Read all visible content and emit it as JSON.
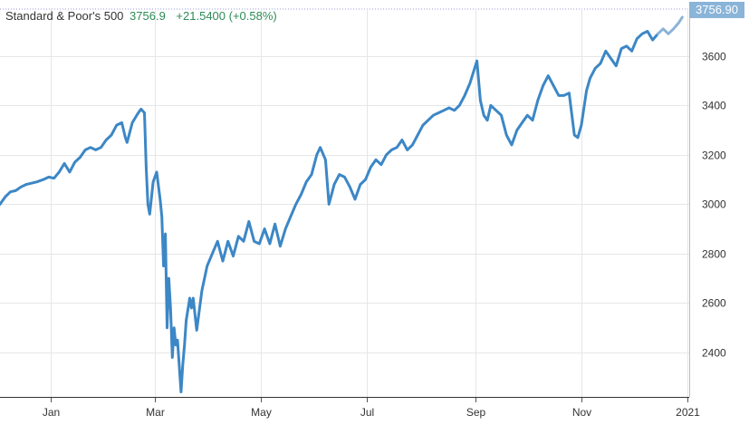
{
  "header": {
    "name": "Standard & Poor's 500",
    "value": "3756.9",
    "change": "+21.5400 (+0.58%)"
  },
  "last_price_badge": "3756.90",
  "colors": {
    "line": "#3c87c6",
    "line_latest": "#8ab4d8",
    "positive_text": "#2e8b57",
    "grid": "#e6e6e6",
    "badge": "#8ab4d8"
  },
  "chart_data": {
    "type": "line",
    "title": "Standard & Poor's 500",
    "xlabel": "",
    "ylabel": "",
    "x_tick_labels": [
      "Jan",
      "Mar",
      "May",
      "Jul",
      "Sep",
      "Nov",
      "2021"
    ],
    "x_ticks": [
      "2020-01-01",
      "2020-03-01",
      "2020-05-01",
      "2020-07-01",
      "2020-09-01",
      "2020-11-01",
      "2021-01-01"
    ],
    "x_range": [
      "2019-12-03",
      "2021-01-02"
    ],
    "y_ticks": [
      2400,
      2600,
      2800,
      3000,
      3200,
      3400,
      3600
    ],
    "ylim": [
      2220,
      3790
    ],
    "grid": true,
    "last_value": 3756.9,
    "series": [
      {
        "name": "",
        "points": [
          [
            "2019-12-03",
            3000
          ],
          [
            "2019-12-06",
            3030
          ],
          [
            "2019-12-09",
            3050
          ],
          [
            "2019-12-12",
            3055
          ],
          [
            "2019-12-15",
            3070
          ],
          [
            "2019-12-18",
            3080
          ],
          [
            "2019-12-21",
            3085
          ],
          [
            "2019-12-24",
            3090
          ],
          [
            "2019-12-28",
            3100
          ],
          [
            "2019-12-31",
            3110
          ],
          [
            "2020-01-03",
            3105
          ],
          [
            "2020-01-06",
            3130
          ],
          [
            "2020-01-09",
            3165
          ],
          [
            "2020-01-12",
            3130
          ],
          [
            "2020-01-15",
            3170
          ],
          [
            "2020-01-18",
            3190
          ],
          [
            "2020-01-21",
            3220
          ],
          [
            "2020-01-24",
            3230
          ],
          [
            "2020-01-27",
            3220
          ],
          [
            "2020-01-30",
            3230
          ],
          [
            "2020-02-02",
            3260
          ],
          [
            "2020-02-05",
            3280
          ],
          [
            "2020-02-08",
            3320
          ],
          [
            "2020-02-11",
            3330
          ],
          [
            "2020-02-13",
            3270
          ],
          [
            "2020-02-14",
            3250
          ],
          [
            "2020-02-17",
            3330
          ],
          [
            "2020-02-20",
            3365
          ],
          [
            "2020-02-22",
            3385
          ],
          [
            "2020-02-24",
            3370
          ],
          [
            "2020-02-25",
            3150
          ],
          [
            "2020-02-26",
            3000
          ],
          [
            "2020-02-27",
            2960
          ],
          [
            "2020-02-29",
            3090
          ],
          [
            "2020-03-02",
            3130
          ],
          [
            "2020-03-04",
            3020
          ],
          [
            "2020-03-05",
            2950
          ],
          [
            "2020-03-06",
            2750
          ],
          [
            "2020-03-07",
            2880
          ],
          [
            "2020-03-08",
            2500
          ],
          [
            "2020-03-09",
            2700
          ],
          [
            "2020-03-10",
            2580
          ],
          [
            "2020-03-11",
            2380
          ],
          [
            "2020-03-12",
            2500
          ],
          [
            "2020-03-13",
            2430
          ],
          [
            "2020-03-14",
            2450
          ],
          [
            "2020-03-16",
            2240
          ],
          [
            "2020-03-17",
            2350
          ],
          [
            "2020-03-18",
            2430
          ],
          [
            "2020-03-19",
            2530
          ],
          [
            "2020-03-21",
            2620
          ],
          [
            "2020-03-22",
            2580
          ],
          [
            "2020-03-23",
            2620
          ],
          [
            "2020-03-25",
            2490
          ],
          [
            "2020-03-28",
            2650
          ],
          [
            "2020-03-31",
            2750
          ],
          [
            "2020-04-03",
            2800
          ],
          [
            "2020-04-06",
            2850
          ],
          [
            "2020-04-09",
            2770
          ],
          [
            "2020-04-12",
            2850
          ],
          [
            "2020-04-15",
            2790
          ],
          [
            "2020-04-18",
            2870
          ],
          [
            "2020-04-21",
            2850
          ],
          [
            "2020-04-24",
            2930
          ],
          [
            "2020-04-27",
            2850
          ],
          [
            "2020-04-30",
            2840
          ],
          [
            "2020-05-03",
            2900
          ],
          [
            "2020-05-06",
            2840
          ],
          [
            "2020-05-09",
            2920
          ],
          [
            "2020-05-12",
            2830
          ],
          [
            "2020-05-15",
            2900
          ],
          [
            "2020-05-18",
            2950
          ],
          [
            "2020-05-21",
            3000
          ],
          [
            "2020-05-24",
            3040
          ],
          [
            "2020-05-27",
            3090
          ],
          [
            "2020-05-30",
            3120
          ],
          [
            "2020-06-02",
            3200
          ],
          [
            "2020-06-04",
            3230
          ],
          [
            "2020-06-07",
            3180
          ],
          [
            "2020-06-09",
            3000
          ],
          [
            "2020-06-12",
            3080
          ],
          [
            "2020-06-15",
            3120
          ],
          [
            "2020-06-18",
            3110
          ],
          [
            "2020-06-21",
            3070
          ],
          [
            "2020-06-24",
            3020
          ],
          [
            "2020-06-27",
            3080
          ],
          [
            "2020-06-30",
            3100
          ],
          [
            "2020-07-03",
            3150
          ],
          [
            "2020-07-06",
            3180
          ],
          [
            "2020-07-09",
            3160
          ],
          [
            "2020-07-12",
            3200
          ],
          [
            "2020-07-15",
            3220
          ],
          [
            "2020-07-18",
            3230
          ],
          [
            "2020-07-21",
            3260
          ],
          [
            "2020-07-24",
            3220
          ],
          [
            "2020-07-27",
            3240
          ],
          [
            "2020-07-30",
            3280
          ],
          [
            "2020-08-02",
            3320
          ],
          [
            "2020-08-05",
            3340
          ],
          [
            "2020-08-08",
            3360
          ],
          [
            "2020-08-11",
            3370
          ],
          [
            "2020-08-14",
            3380
          ],
          [
            "2020-08-17",
            3390
          ],
          [
            "2020-08-20",
            3380
          ],
          [
            "2020-08-23",
            3400
          ],
          [
            "2020-08-26",
            3440
          ],
          [
            "2020-08-29",
            3490
          ],
          [
            "2020-09-02",
            3580
          ],
          [
            "2020-09-04",
            3420
          ],
          [
            "2020-09-06",
            3360
          ],
          [
            "2020-09-08",
            3340
          ],
          [
            "2020-09-10",
            3400
          ],
          [
            "2020-09-13",
            3380
          ],
          [
            "2020-09-16",
            3360
          ],
          [
            "2020-09-19",
            3280
          ],
          [
            "2020-09-22",
            3240
          ],
          [
            "2020-09-25",
            3300
          ],
          [
            "2020-09-28",
            3330
          ],
          [
            "2020-10-01",
            3360
          ],
          [
            "2020-10-04",
            3340
          ],
          [
            "2020-10-07",
            3420
          ],
          [
            "2020-10-10",
            3480
          ],
          [
            "2020-10-13",
            3520
          ],
          [
            "2020-10-16",
            3480
          ],
          [
            "2020-10-19",
            3440
          ],
          [
            "2020-10-22",
            3440
          ],
          [
            "2020-10-25",
            3450
          ],
          [
            "2020-10-28",
            3280
          ],
          [
            "2020-10-30",
            3270
          ],
          [
            "2020-11-01",
            3320
          ],
          [
            "2020-11-04",
            3460
          ],
          [
            "2020-11-06",
            3510
          ],
          [
            "2020-11-09",
            3550
          ],
          [
            "2020-11-12",
            3570
          ],
          [
            "2020-11-15",
            3620
          ],
          [
            "2020-11-18",
            3590
          ],
          [
            "2020-11-21",
            3560
          ],
          [
            "2020-11-24",
            3630
          ],
          [
            "2020-11-27",
            3640
          ],
          [
            "2020-11-30",
            3620
          ],
          [
            "2020-12-03",
            3670
          ],
          [
            "2020-12-06",
            3690
          ],
          [
            "2020-12-09",
            3700
          ],
          [
            "2020-12-12",
            3665
          ],
          [
            "2020-12-15",
            3690
          ],
          [
            "2020-12-18",
            3710
          ],
          [
            "2020-12-21",
            3690
          ],
          [
            "2020-12-24",
            3710
          ],
          [
            "2020-12-27",
            3735
          ],
          [
            "2020-12-29",
            3757
          ]
        ]
      }
    ]
  }
}
